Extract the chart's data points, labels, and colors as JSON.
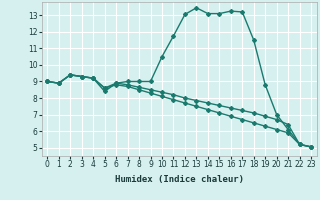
{
  "xlabel": "Humidex (Indice chaleur)",
  "xlim": [
    -0.5,
    23.5
  ],
  "ylim": [
    4.5,
    13.8
  ],
  "yticks": [
    5,
    6,
    7,
    8,
    9,
    10,
    11,
    12,
    13
  ],
  "xticks": [
    0,
    1,
    2,
    3,
    4,
    5,
    6,
    7,
    8,
    9,
    10,
    11,
    12,
    13,
    14,
    15,
    16,
    17,
    18,
    19,
    20,
    21,
    22,
    23
  ],
  "bg_color": "#d6f0ef",
  "line_color": "#1a7a6e",
  "grid_color": "#ffffff",
  "curve1_x": [
    0,
    1,
    2,
    3,
    4,
    5,
    6,
    7,
    8,
    9,
    10,
    11,
    12,
    13,
    14,
    15,
    16,
    17,
    18,
    19,
    20,
    21,
    22,
    23
  ],
  "curve1_y": [
    9.0,
    8.9,
    9.4,
    9.3,
    9.2,
    8.4,
    8.9,
    9.0,
    9.0,
    9.0,
    10.5,
    11.75,
    13.05,
    13.45,
    13.1,
    13.1,
    13.25,
    13.2,
    11.5,
    8.8,
    7.0,
    6.1,
    5.2,
    5.05
  ],
  "curve2_x": [
    0,
    1,
    2,
    3,
    4,
    5,
    6,
    7,
    8,
    9,
    10,
    11,
    12,
    13,
    14,
    15,
    16,
    17,
    18,
    19,
    20,
    21,
    22,
    23
  ],
  "curve2_y": [
    9.0,
    8.9,
    9.4,
    9.3,
    9.2,
    8.6,
    8.8,
    8.7,
    8.5,
    8.3,
    8.1,
    7.9,
    7.7,
    7.5,
    7.3,
    7.1,
    6.9,
    6.7,
    6.5,
    6.3,
    6.1,
    5.9,
    5.2,
    5.05
  ],
  "curve3_x": [
    0,
    1,
    2,
    3,
    4,
    5,
    6,
    7,
    8,
    9,
    10,
    11,
    12,
    13,
    14,
    15,
    16,
    17,
    18,
    19,
    20,
    21,
    22,
    23
  ],
  "curve3_y": [
    9.0,
    8.9,
    9.4,
    9.3,
    9.2,
    8.6,
    8.9,
    8.8,
    8.65,
    8.5,
    8.35,
    8.2,
    8.0,
    7.85,
    7.7,
    7.55,
    7.4,
    7.25,
    7.1,
    6.9,
    6.7,
    6.4,
    5.2,
    5.05
  ],
  "marker": "D",
  "markersize": 2.0,
  "linewidth": 1.0,
  "axis_fontsize": 6.5,
  "tick_fontsize": 5.5
}
